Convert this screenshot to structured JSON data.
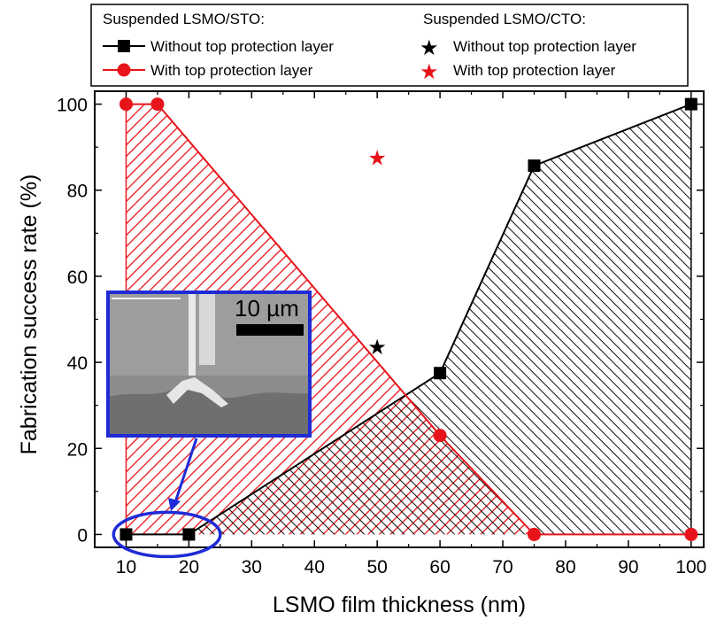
{
  "chart_data": {
    "type": "area",
    "xlabel": "LSMO film thickness (nm)",
    "ylabel": "Fabrication success rate (%)",
    "xlim": [
      5,
      102
    ],
    "ylim": [
      -3,
      103
    ],
    "xticks": [
      10,
      20,
      30,
      40,
      50,
      60,
      70,
      80,
      90,
      100
    ],
    "yticks": [
      0,
      20,
      40,
      60,
      80,
      100
    ],
    "grid": false,
    "legend": {
      "position": "top",
      "groups": [
        {
          "title": "Suspended LSMO/STO:",
          "entries": [
            {
              "label": "Without top protection layer",
              "marker": "square-line",
              "color": "#000000"
            },
            {
              "label": "With top protection layer",
              "marker": "circle-line",
              "color": "#e8141b"
            }
          ]
        },
        {
          "title": "Suspended LSMO/CTO:",
          "entries": [
            {
              "label": "Without top protection layer",
              "marker": "star",
              "color": "#000000"
            },
            {
              "label": "With top protection layer",
              "marker": "star",
              "color": "#e8141b"
            }
          ]
        }
      ]
    },
    "series": [
      {
        "name": "Without top protection layer",
        "substrate": "LSMO/STO",
        "color": "#000000",
        "marker": "square",
        "fill": "hatched",
        "x": [
          10,
          20,
          60,
          75,
          100
        ],
        "y": [
          0,
          0,
          37.5,
          85.7,
          100
        ]
      },
      {
        "name": "With top protection layer",
        "substrate": "LSMO/STO",
        "color": "#e8141b",
        "marker": "circle",
        "fill": "hatched",
        "x": [
          10,
          15,
          60,
          75,
          100
        ],
        "y": [
          100,
          100,
          23,
          0,
          0
        ]
      },
      {
        "name": "Without top protection layer",
        "substrate": "LSMO/CTO",
        "color": "#000000",
        "marker": "star",
        "x": [
          50
        ],
        "y": [
          43.5
        ]
      },
      {
        "name": "With top protection layer",
        "substrate": "LSMO/CTO",
        "color": "#e8141b",
        "marker": "star",
        "x": [
          50
        ],
        "y": [
          87.5
        ]
      }
    ],
    "inset": {
      "scale_bar_label": "10 µm",
      "frame_color": "#1e2bd6",
      "highlight_x_range": [
        8,
        25
      ]
    }
  }
}
